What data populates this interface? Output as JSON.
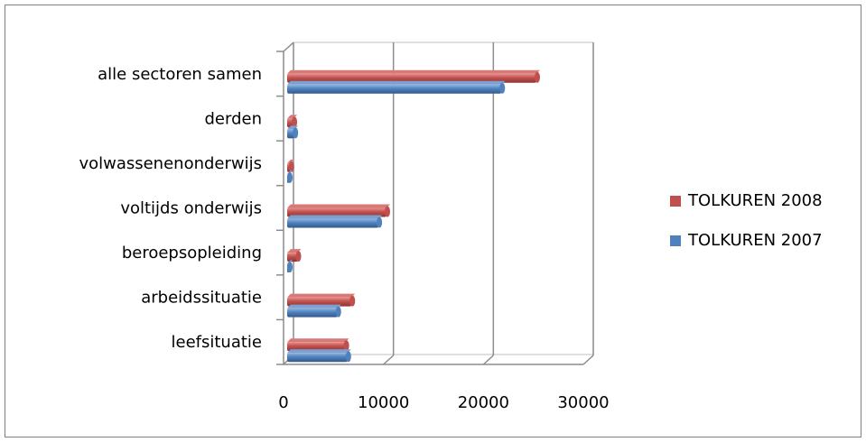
{
  "chart_data": {
    "type": "bar",
    "orientation": "horizontal",
    "three_d": true,
    "categories": [
      "leefsituatie",
      "arbeidssituatie",
      "beroepsopleiding",
      "voltijds onderwijs",
      "volwassenenonderwijs",
      "derden",
      "alle sectoren samen"
    ],
    "series": [
      {
        "name": "TOLKUREN 2008",
        "color": "#C0504D",
        "values": [
          6200,
          6800,
          1400,
          10300,
          700,
          1000,
          25300
        ]
      },
      {
        "name": "TOLKUREN 2007",
        "color": "#4F81BD",
        "values": [
          6400,
          5400,
          500,
          9500,
          300,
          1100,
          21800
        ]
      }
    ],
    "xlim": [
      0,
      30000
    ],
    "xticks": [
      "0",
      "10000",
      "20000",
      "30000"
    ],
    "grid": true,
    "legend_position": "right"
  }
}
